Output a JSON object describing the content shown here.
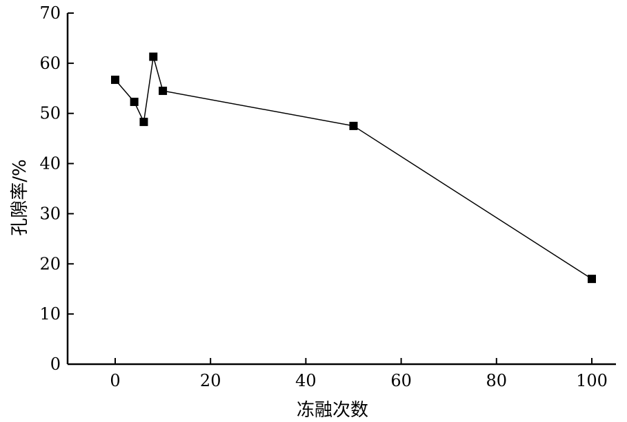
{
  "chart_data": {
    "type": "line",
    "title": "",
    "xlabel": "冻融次数",
    "ylabel": "孔隙率/%",
    "xlim": [
      -10,
      105
    ],
    "ylim": [
      0,
      70
    ],
    "x_ticks": [
      0,
      20,
      40,
      60,
      80,
      100
    ],
    "y_ticks": [
      0,
      10,
      20,
      30,
      40,
      50,
      60,
      70
    ],
    "grid": false,
    "series": [
      {
        "marker": "square",
        "color": "#000000",
        "x": [
          0,
          4,
          6,
          8,
          10,
          50,
          100
        ],
        "y": [
          56.7,
          52.3,
          48.3,
          61.3,
          54.5,
          47.5,
          17.0
        ]
      }
    ]
  }
}
